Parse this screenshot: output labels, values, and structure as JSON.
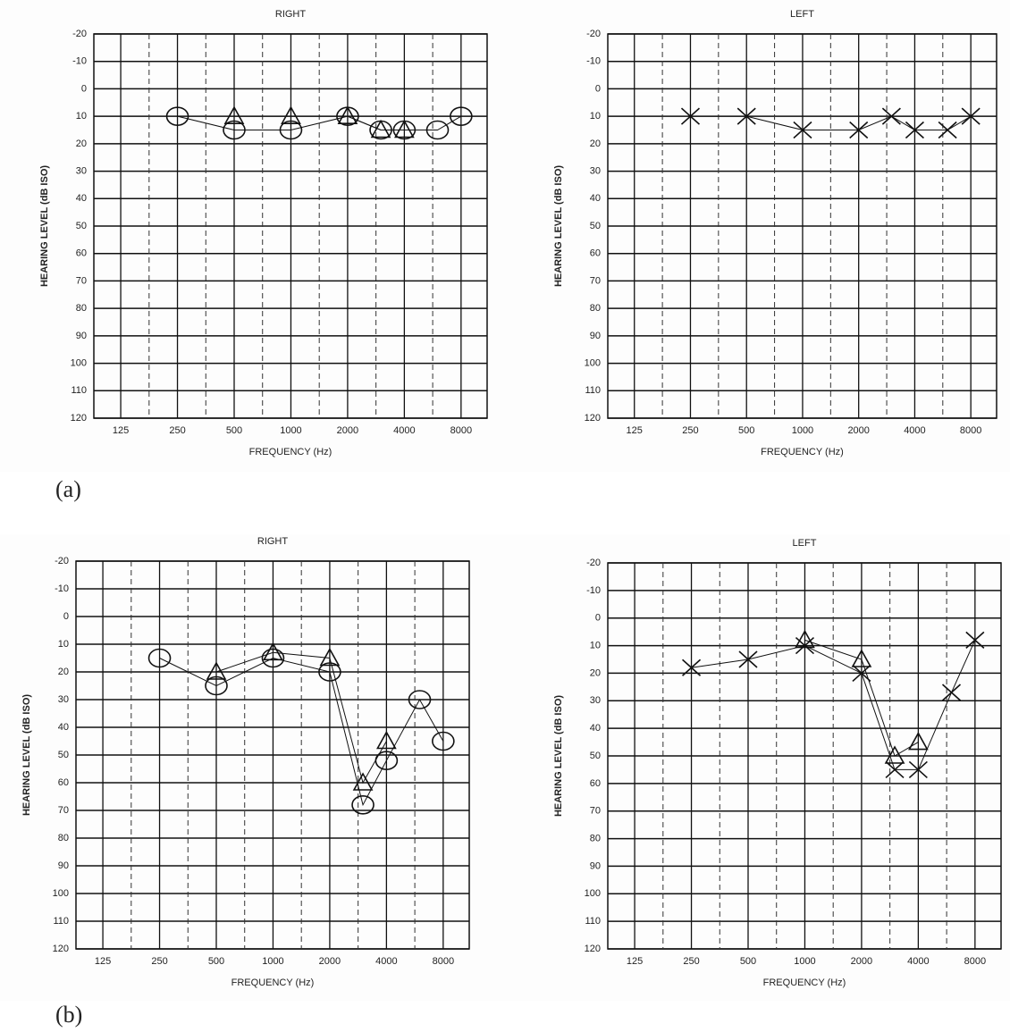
{
  "panel_labels": [
    "(a)",
    "(b)"
  ],
  "chart_data": [
    {
      "type": "line",
      "title": "RIGHT",
      "y_label": "HEARING LEVEL (dB ISO)",
      "x_label": "FREQUENCY (Hz)",
      "xscale": "log",
      "xlim": [
        90,
        11000
      ],
      "ylim": [
        -20,
        120
      ],
      "y_inverted": true,
      "xticks": [
        125,
        250,
        500,
        1000,
        2000,
        4000,
        8000
      ],
      "yticks": [
        -20,
        -10,
        0,
        10,
        20,
        30,
        40,
        50,
        60,
        70,
        80,
        90,
        100,
        110,
        120
      ],
      "series": [
        {
          "marker": "circle",
          "color": "#111111",
          "x": [
            250,
            500,
            1000,
            2000,
            3000,
            4000,
            6000,
            8000
          ],
          "values": [
            10,
            15,
            15,
            10,
            15,
            15,
            15,
            10
          ]
        },
        {
          "marker": "triangle",
          "color": "#111111",
          "x": [
            500,
            1000,
            2000,
            3000,
            4000
          ],
          "values": [
            10,
            10,
            10,
            15,
            15
          ]
        }
      ]
    },
    {
      "type": "line",
      "title": "LEFT",
      "y_label": "HEARING LEVEL (dB ISO)",
      "x_label": "FREQUENCY (Hz)",
      "xscale": "log",
      "xlim": [
        90,
        11000
      ],
      "ylim": [
        -20,
        120
      ],
      "y_inverted": true,
      "xticks": [
        125,
        250,
        500,
        1000,
        2000,
        4000,
        8000
      ],
      "yticks": [
        -20,
        -10,
        0,
        10,
        20,
        30,
        40,
        50,
        60,
        70,
        80,
        90,
        100,
        110,
        120
      ],
      "series": [
        {
          "marker": "cross",
          "color": "#111111",
          "x": [
            250,
            500,
            1000,
            2000,
            3000,
            4000,
            6000,
            8000
          ],
          "values": [
            10,
            10,
            15,
            15,
            10,
            15,
            15,
            10
          ]
        }
      ]
    },
    {
      "type": "line",
      "title": "RIGHT",
      "y_label": "HEARING LEVEL (dB ISO)",
      "x_label": "FREQUENCY (Hz)",
      "xscale": "log",
      "xlim": [
        90,
        11000
      ],
      "ylim": [
        -20,
        120
      ],
      "y_inverted": true,
      "xticks": [
        125,
        250,
        500,
        1000,
        2000,
        4000,
        8000
      ],
      "yticks": [
        -20,
        -10,
        0,
        10,
        20,
        30,
        40,
        50,
        60,
        70,
        80,
        90,
        100,
        110,
        120
      ],
      "series": [
        {
          "marker": "circle",
          "color": "#111111",
          "x": [
            250,
            500,
            1000,
            2000,
            3000,
            4000,
            6000,
            8000
          ],
          "values": [
            15,
            25,
            15,
            20,
            68,
            52,
            30,
            45
          ]
        },
        {
          "marker": "triangle",
          "color": "#111111",
          "x": [
            500,
            1000,
            2000,
            3000,
            4000
          ],
          "values": [
            20,
            13,
            15,
            60,
            45
          ]
        }
      ]
    },
    {
      "type": "line",
      "title": "LEFT",
      "y_label": "HEARING LEVEL (dB ISO)",
      "x_label": "FREQUENCY (Hz)",
      "xscale": "log",
      "xlim": [
        90,
        11000
      ],
      "ylim": [
        -20,
        120
      ],
      "y_inverted": true,
      "xticks": [
        125,
        250,
        500,
        1000,
        2000,
        4000,
        8000
      ],
      "yticks": [
        -20,
        -10,
        0,
        10,
        20,
        30,
        40,
        50,
        60,
        70,
        80,
        90,
        100,
        110,
        120
      ],
      "series": [
        {
          "marker": "cross",
          "color": "#111111",
          "x": [
            250,
            500,
            1000,
            2000,
            3000,
            4000,
            6000,
            8000
          ],
          "values": [
            18,
            15,
            10,
            20,
            55,
            55,
            27,
            8
          ]
        },
        {
          "marker": "triangle",
          "color": "#111111",
          "x": [
            1000,
            2000,
            3000,
            4000
          ],
          "values": [
            8,
            15,
            50,
            45
          ]
        }
      ]
    }
  ]
}
